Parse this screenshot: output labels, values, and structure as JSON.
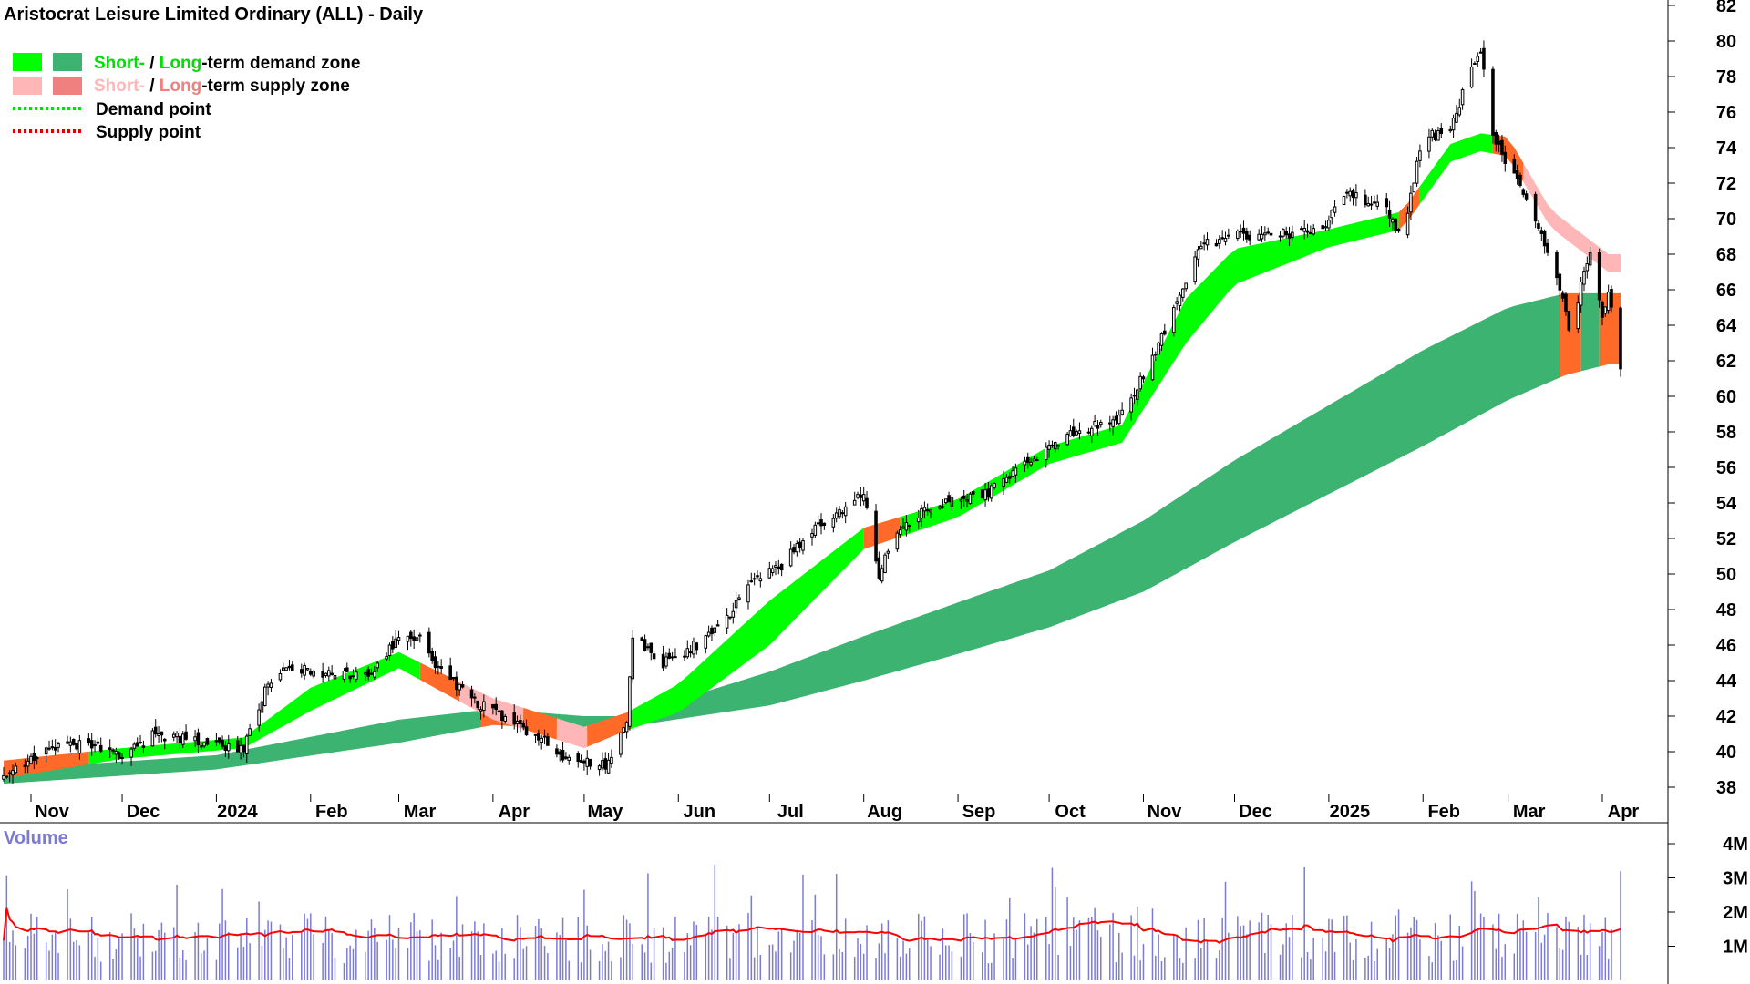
{
  "title": "Aristocrat Leisure Limited Ordinary (ALL) - Daily",
  "legend": {
    "demand_short": "Short-",
    "demand_sep": " / ",
    "demand_long": "Long",
    "demand_suffix": "-term demand zone",
    "supply_short": "Short-",
    "supply_sep": " / ",
    "supply_long": "Long",
    "supply_suffix": "-term supply zone",
    "demand_point": "Demand point",
    "supply_point": "Supply point"
  },
  "colors": {
    "short_demand": "#00ff00",
    "long_demand": "#3cb371",
    "short_supply": "#ffb6b6",
    "long_supply": "#f08080",
    "overlap": "#ff6a28",
    "demand_point": "#00dd00",
    "supply_point": "#dd0000",
    "volume_bar": "#7b7bd6",
    "volume_avg": "#ff0000",
    "volume_label": "#7b7bd6"
  },
  "volume_panel": {
    "label": "Volume",
    "tick_labels": [
      "4M",
      "3M",
      "2M",
      "1M"
    ],
    "ticks": [
      4,
      3,
      2,
      1
    ]
  },
  "chart_data": {
    "type": "candlestick",
    "title": "Aristocrat Leisure Limited Ordinary (ALL) - Daily",
    "ylim": [
      37,
      83
    ],
    "y_ticks": [
      38,
      40,
      42,
      44,
      46,
      48,
      50,
      52,
      54,
      56,
      58,
      60,
      62,
      64,
      66,
      68,
      70,
      72,
      74,
      76,
      78,
      80,
      82
    ],
    "x_range": [
      "2023-10-23",
      "2025-04-07"
    ],
    "x_ticks": [
      {
        "date": "2023-11-01",
        "label": "Nov"
      },
      {
        "date": "2023-12-01",
        "label": "Dec"
      },
      {
        "date": "2024-01-01",
        "label": "2024"
      },
      {
        "date": "2024-02-01",
        "label": "Feb"
      },
      {
        "date": "2024-03-01",
        "label": "Mar"
      },
      {
        "date": "2024-04-01",
        "label": "Apr"
      },
      {
        "date": "2024-05-01",
        "label": "May"
      },
      {
        "date": "2024-06-01",
        "label": "Jun"
      },
      {
        "date": "2024-07-01",
        "label": "Jul"
      },
      {
        "date": "2024-08-01",
        "label": "Aug"
      },
      {
        "date": "2024-09-01",
        "label": "Sep"
      },
      {
        "date": "2024-10-01",
        "label": "Oct"
      },
      {
        "date": "2024-11-01",
        "label": "Nov"
      },
      {
        "date": "2024-12-01",
        "label": "Dec"
      },
      {
        "date": "2025-01-01",
        "label": "2025"
      },
      {
        "date": "2025-02-01",
        "label": "Feb"
      },
      {
        "date": "2025-03-01",
        "label": "Mar"
      },
      {
        "date": "2025-04-01",
        "label": "Apr"
      }
    ],
    "close_path": [
      [
        "2023-10-23",
        38.8
      ],
      [
        "2023-11-01",
        39.6
      ],
      [
        "2023-11-10",
        40.2
      ],
      [
        "2023-11-20",
        40.4
      ],
      [
        "2023-12-01",
        39.7
      ],
      [
        "2023-12-12",
        41.0
      ],
      [
        "2024-01-01",
        40.4
      ],
      [
        "2024-01-10",
        40.2
      ],
      [
        "2024-01-18",
        43.8
      ],
      [
        "2024-01-25",
        44.7
      ],
      [
        "2024-02-08",
        44.4
      ],
      [
        "2024-02-20",
        44.2
      ],
      [
        "2024-03-01",
        46.5
      ],
      [
        "2024-03-08",
        46.3
      ],
      [
        "2024-03-15",
        44.5
      ],
      [
        "2024-03-25",
        43.0
      ],
      [
        "2024-04-05",
        41.8
      ],
      [
        "2024-04-15",
        41.0
      ],
      [
        "2024-04-25",
        39.5
      ],
      [
        "2024-05-08",
        39.3
      ],
      [
        "2024-05-15",
        41.5
      ],
      [
        "2024-05-17",
        46.5
      ],
      [
        "2024-05-27",
        45.0
      ],
      [
        "2024-06-05",
        45.8
      ],
      [
        "2024-06-15",
        47.0
      ],
      [
        "2024-06-25",
        49.5
      ],
      [
        "2024-07-05",
        50.5
      ],
      [
        "2024-07-15",
        52.5
      ],
      [
        "2024-07-25",
        53.5
      ],
      [
        "2024-08-01",
        54.5
      ],
      [
        "2024-08-06",
        50.0
      ],
      [
        "2024-08-12",
        52.5
      ],
      [
        "2024-08-25",
        54.0
      ],
      [
        "2024-09-10",
        54.5
      ],
      [
        "2024-09-25",
        56.5
      ],
      [
        "2024-10-10",
        58.0
      ],
      [
        "2024-10-25",
        59.0
      ],
      [
        "2024-11-05",
        62.5
      ],
      [
        "2024-11-15",
        66.5
      ],
      [
        "2024-11-20",
        68.5
      ],
      [
        "2024-12-01",
        69.0
      ],
      [
        "2024-12-15",
        69.2
      ],
      [
        "2024-12-28",
        69.2
      ],
      [
        "2025-01-08",
        71.5
      ],
      [
        "2025-01-20",
        70.5
      ],
      [
        "2025-01-25",
        69.0
      ],
      [
        "2025-02-01",
        74.5
      ],
      [
        "2025-02-10",
        75.0
      ],
      [
        "2025-02-17",
        78.5
      ],
      [
        "2025-02-20",
        79.5
      ],
      [
        "2025-02-24",
        74.5
      ],
      [
        "2025-03-05",
        72.0
      ],
      [
        "2025-03-12",
        69.0
      ],
      [
        "2025-03-18",
        66.0
      ],
      [
        "2025-03-22",
        63.0
      ],
      [
        "2025-03-25",
        66.5
      ],
      [
        "2025-03-28",
        67.8
      ],
      [
        "2025-04-01",
        64.5
      ],
      [
        "2025-04-03",
        66.0
      ],
      [
        "2025-04-07",
        61.5
      ]
    ],
    "zones": {
      "short_term": [
        [
          "2023-10-23",
          38.5,
          39.5
        ],
        [
          "2023-12-01",
          39.6,
          40.2
        ],
        [
          "2024-01-10",
          40.2,
          40.8
        ],
        [
          "2024-02-01",
          42.3,
          43.6
        ],
        [
          "2024-03-01",
          44.7,
          45.6
        ],
        [
          "2024-04-01",
          41.8,
          43.0
        ],
        [
          "2024-05-01",
          40.2,
          41.4
        ],
        [
          "2024-05-15",
          41.2,
          42.2
        ],
        [
          "2024-06-01",
          42.2,
          43.8
        ],
        [
          "2024-07-01",
          46.0,
          48.5
        ],
        [
          "2024-08-01",
          51.4,
          52.6
        ],
        [
          "2024-09-01",
          53.2,
          54.2
        ],
        [
          "2024-10-01",
          56.2,
          57.2
        ],
        [
          "2024-10-25",
          57.4,
          58.4
        ],
        [
          "2024-11-15",
          63.0,
          65.5
        ],
        [
          "2024-12-01",
          66.3,
          68.3
        ],
        [
          "2025-01-01",
          68.4,
          69.4
        ],
        [
          "2025-01-25",
          69.4,
          70.4
        ],
        [
          "2025-02-10",
          73.2,
          74.2
        ],
        [
          "2025-02-20",
          73.8,
          74.8
        ],
        [
          "2025-03-01",
          73.5,
          74.6
        ],
        [
          "2025-03-15",
          69.5,
          70.5
        ],
        [
          "2025-04-03",
          67.0,
          68.0
        ]
      ],
      "long_term": [
        [
          "2023-10-23",
          38.2,
          39.0
        ],
        [
          "2024-01-01",
          39.0,
          39.8
        ],
        [
          "2024-03-01",
          40.5,
          41.8
        ],
        [
          "2024-04-01",
          41.5,
          42.4
        ],
        [
          "2024-05-01",
          41.2,
          42.0
        ],
        [
          "2024-05-15",
          41.4,
          42.0
        ],
        [
          "2024-07-01",
          42.6,
          44.5
        ],
        [
          "2024-08-01",
          44.0,
          46.5
        ],
        [
          "2024-09-01",
          45.5,
          48.4
        ],
        [
          "2024-10-01",
          47.0,
          50.2
        ],
        [
          "2024-11-01",
          49.0,
          53.0
        ],
        [
          "2024-12-01",
          51.8,
          56.4
        ],
        [
          "2025-01-01",
          54.5,
          59.5
        ],
        [
          "2025-02-01",
          57.2,
          62.6
        ],
        [
          "2025-03-01",
          59.8,
          65.0
        ],
        [
          "2025-03-20",
          61.2,
          65.8
        ],
        [
          "2025-04-03",
          61.8,
          65.8
        ]
      ]
    }
  }
}
